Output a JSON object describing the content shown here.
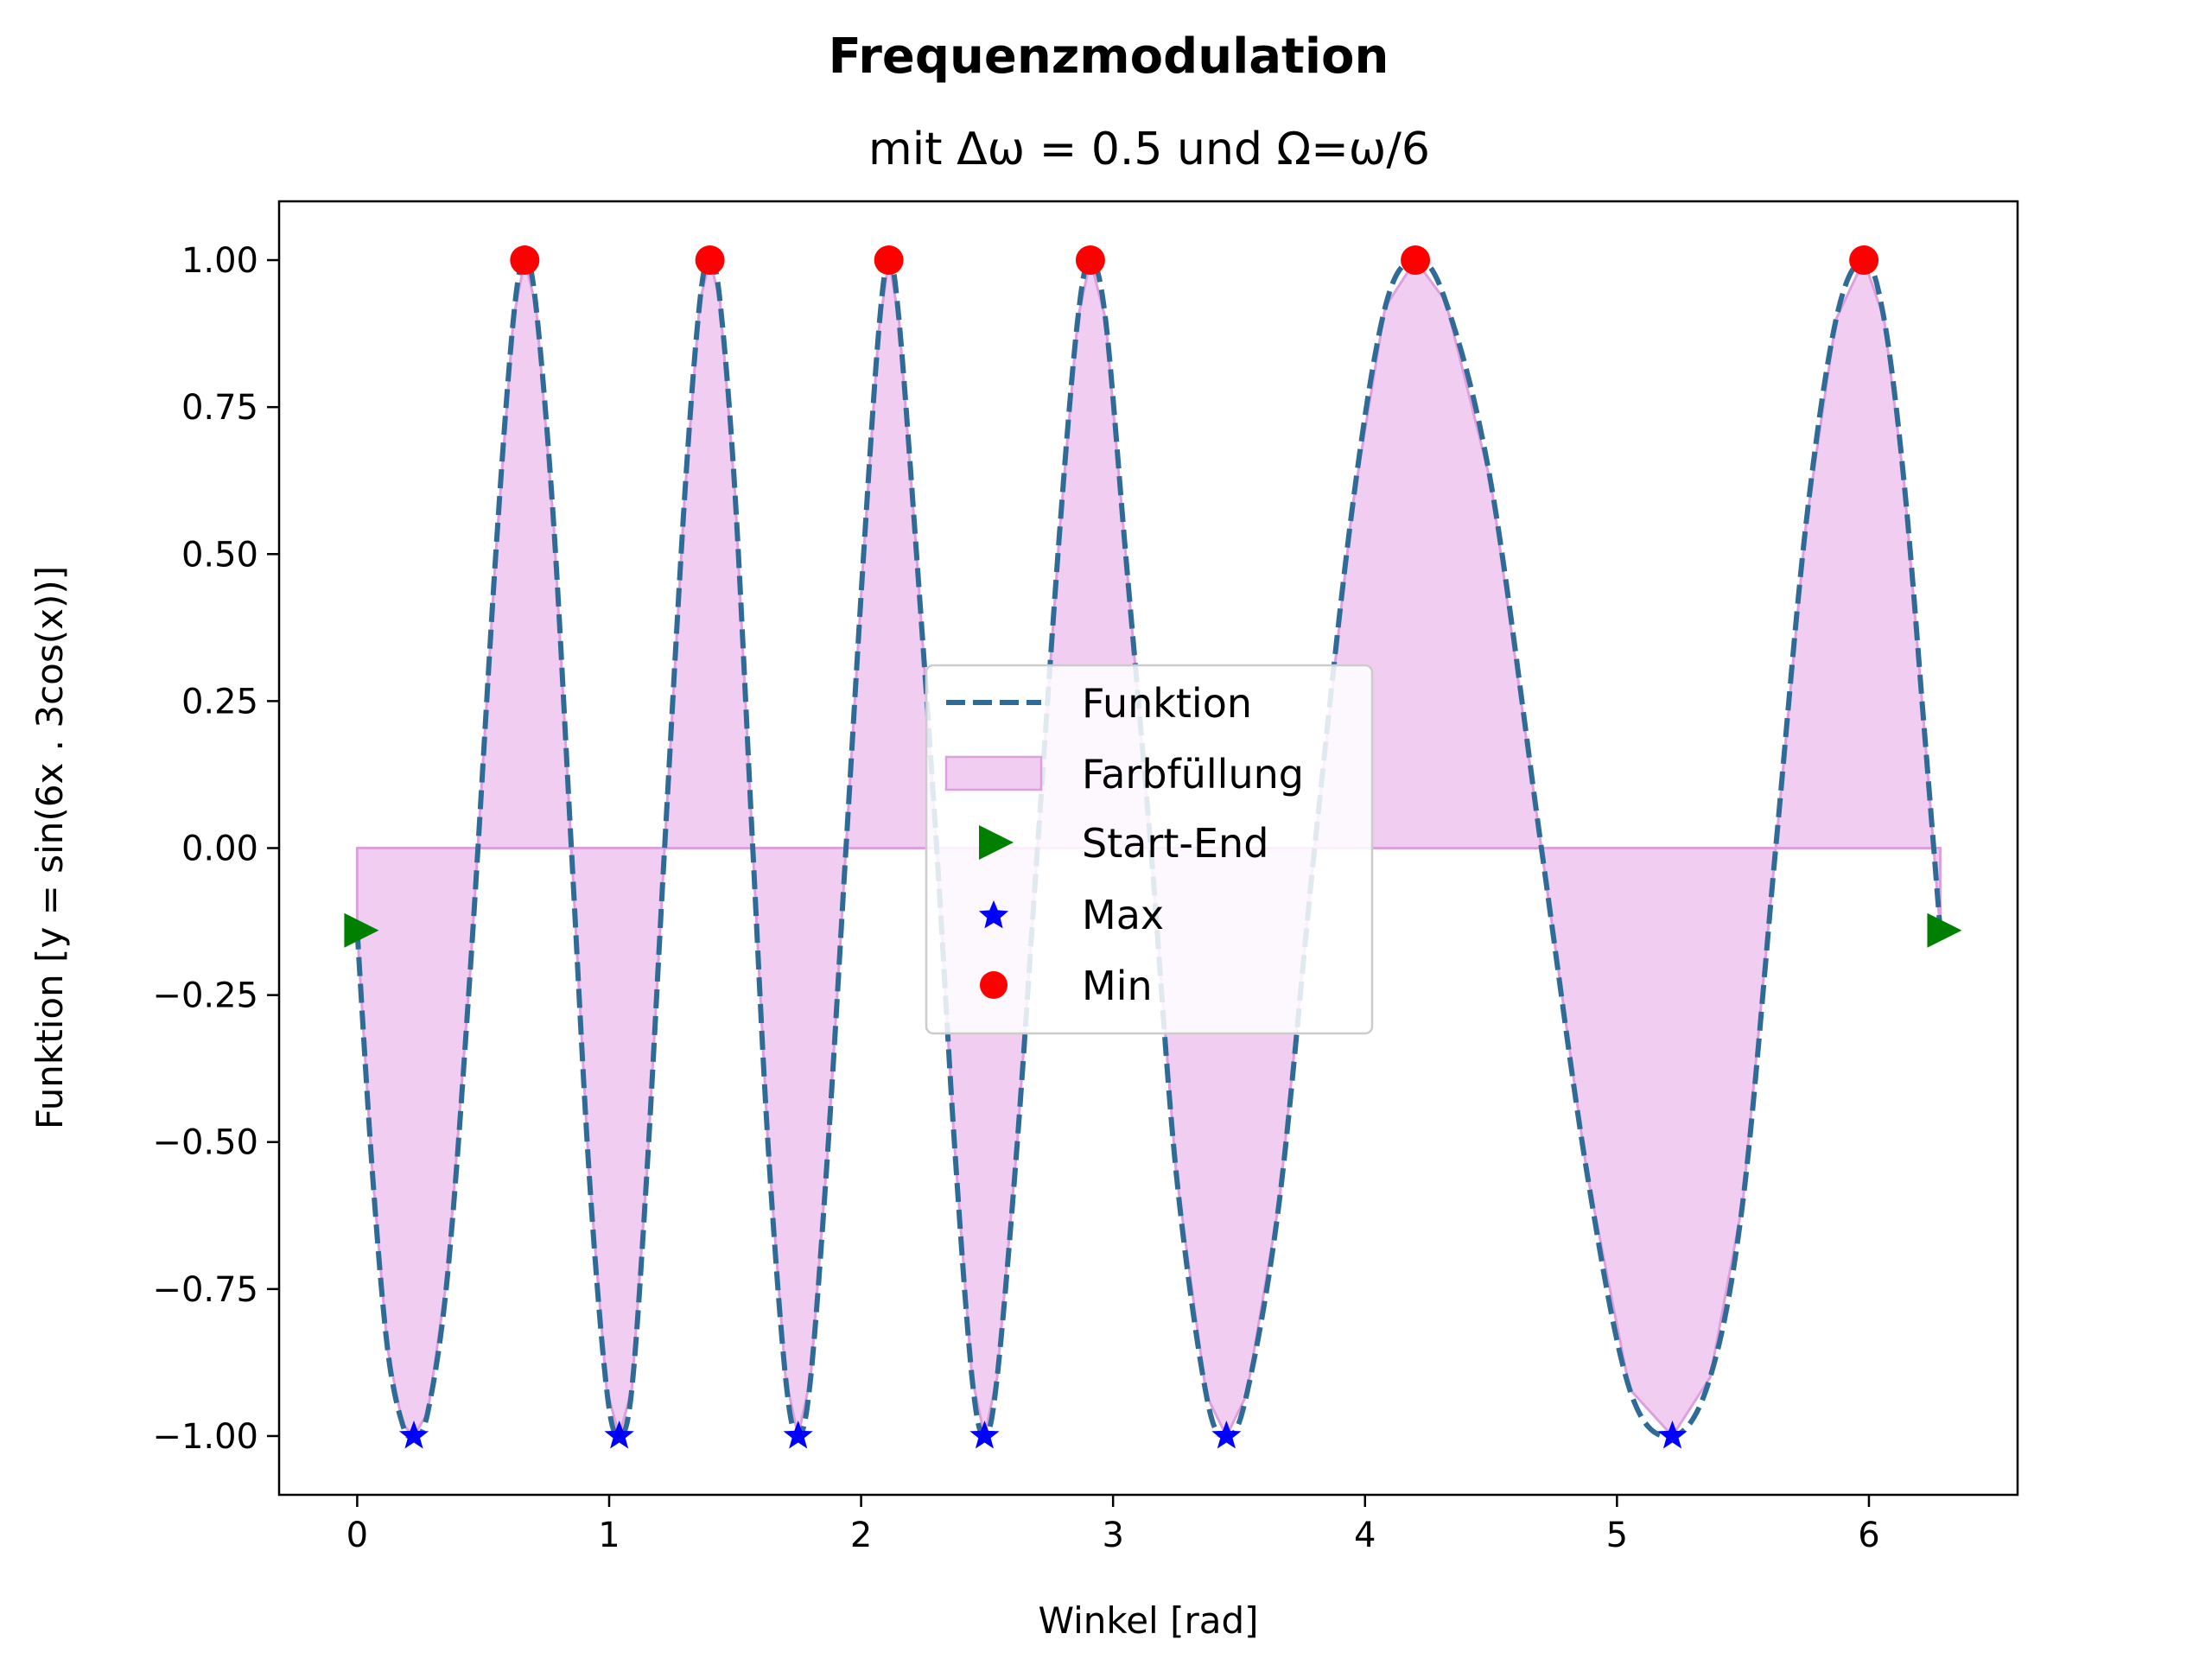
{
  "chart_data": {
    "type": "line",
    "title": "Frequenzmodulation",
    "subtitle": "mit Δω = 0.5 und Ω=ω/6",
    "xlabel": "Winkel [rad]",
    "ylabel": "Funktion [y = sin(6x . 3cos(x))]",
    "xlim": [
      -0.31,
      6.59
    ],
    "ylim": [
      -1.1,
      1.1
    ],
    "xticks": [
      0,
      1,
      2,
      3,
      4,
      5,
      6
    ],
    "xtick_labels": [
      "0",
      "1",
      "2",
      "3",
      "4",
      "5",
      "6"
    ],
    "yticks": [
      1.0,
      0.75,
      0.5,
      0.25,
      0.0,
      -0.25,
      -0.5,
      -0.75,
      -1.0
    ],
    "ytick_labels": [
      "1.00",
      "0.75",
      "0.50",
      "0.25",
      "0.00",
      "−0.25",
      "−0.50",
      "−0.75",
      "−1.00"
    ],
    "grid": false,
    "legend_position": "center",
    "series": [
      {
        "name": "Funktion",
        "style": "dashed line",
        "color": "#2e6b96",
        "x_range": [
          0,
          6.283
        ],
        "points": [
          [
            0.0,
            -0.14
          ],
          [
            0.06,
            -0.55
          ],
          [
            0.12,
            -0.85
          ],
          [
            0.18,
            -0.98
          ],
          [
            0.225,
            -1.0
          ],
          [
            0.28,
            -0.96
          ],
          [
            0.36,
            -0.72
          ],
          [
            0.45,
            -0.2
          ],
          [
            0.55,
            0.5
          ],
          [
            0.62,
            0.9
          ],
          [
            0.665,
            1.0
          ],
          [
            0.71,
            0.92
          ],
          [
            0.78,
            0.55
          ],
          [
            0.85,
            0.0
          ],
          [
            0.92,
            -0.55
          ],
          [
            0.99,
            -0.92
          ],
          [
            1.04,
            -1.0
          ],
          [
            1.09,
            -0.92
          ],
          [
            1.15,
            -0.55
          ],
          [
            1.22,
            0.0
          ],
          [
            1.3,
            0.6
          ],
          [
            1.36,
            0.93
          ],
          [
            1.4,
            1.0
          ],
          [
            1.44,
            0.93
          ],
          [
            1.5,
            0.6
          ],
          [
            1.57,
            0.0
          ],
          [
            1.63,
            -0.5
          ],
          [
            1.7,
            -0.9
          ],
          [
            1.75,
            -1.0
          ],
          [
            1.8,
            -0.9
          ],
          [
            1.87,
            -0.5
          ],
          [
            1.94,
            0.0
          ],
          [
            2.01,
            0.5
          ],
          [
            2.07,
            0.88
          ],
          [
            2.11,
            1.0
          ],
          [
            2.15,
            0.9
          ],
          [
            2.22,
            0.5
          ],
          [
            2.3,
            0.0
          ],
          [
            2.37,
            -0.5
          ],
          [
            2.44,
            -0.9
          ],
          [
            2.49,
            -1.0
          ],
          [
            2.54,
            -0.9
          ],
          [
            2.62,
            -0.5
          ],
          [
            2.7,
            0.0
          ],
          [
            2.79,
            0.55
          ],
          [
            2.86,
            0.9
          ],
          [
            2.91,
            1.0
          ],
          [
            2.97,
            0.9
          ],
          [
            3.05,
            0.5
          ],
          [
            3.15,
            0.0
          ],
          [
            3.25,
            -0.55
          ],
          [
            3.37,
            -0.93
          ],
          [
            3.45,
            -1.0
          ],
          [
            3.53,
            -0.93
          ],
          [
            3.66,
            -0.6
          ],
          [
            3.8,
            0.0
          ],
          [
            3.95,
            0.58
          ],
          [
            4.08,
            0.92
          ],
          [
            4.2,
            1.0
          ],
          [
            4.32,
            0.93
          ],
          [
            4.5,
            0.62
          ],
          [
            4.7,
            0.0
          ],
          [
            4.88,
            -0.55
          ],
          [
            5.05,
            -0.92
          ],
          [
            5.22,
            -1.0
          ],
          [
            5.37,
            -0.9
          ],
          [
            5.5,
            -0.6
          ],
          [
            5.63,
            0.0
          ],
          [
            5.75,
            0.55
          ],
          [
            5.87,
            0.9
          ],
          [
            5.98,
            1.0
          ],
          [
            6.06,
            0.9
          ],
          [
            6.14,
            0.62
          ],
          [
            6.22,
            0.2
          ],
          [
            6.283,
            -0.14
          ]
        ]
      },
      {
        "name": "Farbfüllung",
        "style": "fill between curve and y=0",
        "color": "#f2cdf2",
        "edge_color": "#dda0dd"
      },
      {
        "name": "Start-End",
        "style": "triangle-right markers",
        "color": "#008000",
        "points": [
          [
            0.0,
            -0.14
          ],
          [
            6.283,
            -0.14
          ]
        ]
      },
      {
        "name": "Max",
        "style": "star markers",
        "color": "#0000ff",
        "points": [
          [
            0.225,
            -1.0
          ],
          [
            1.04,
            -1.0
          ],
          [
            1.75,
            -1.0
          ],
          [
            2.49,
            -1.0
          ],
          [
            3.45,
            -1.0
          ],
          [
            5.22,
            -1.0
          ]
        ]
      },
      {
        "name": "Min",
        "style": "circle markers",
        "color": "#ff0000",
        "points": [
          [
            0.665,
            1.0
          ],
          [
            1.4,
            1.0
          ],
          [
            2.11,
            1.0
          ],
          [
            2.91,
            1.0
          ],
          [
            4.2,
            1.0
          ],
          [
            5.98,
            1.0
          ]
        ]
      }
    ]
  }
}
